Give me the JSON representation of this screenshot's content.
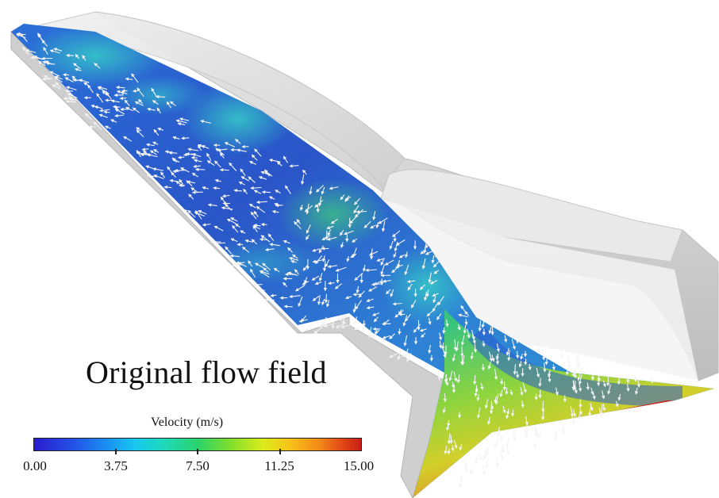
{
  "figure": {
    "title": "Original flow field"
  },
  "colorbar": {
    "label": "Velocity (m/s)",
    "ticks": [
      "0.00",
      "3.75",
      "7.50",
      "11.25",
      "15.00"
    ],
    "range": [
      0,
      15
    ],
    "colormap": [
      "#2a1ccf",
      "#1a8ef2",
      "#18c8ee",
      "#29d36b",
      "#dceb1c",
      "#f38b17",
      "#c81e14"
    ]
  },
  "scene": {
    "subject": "channel-geometry-with-velocity-vectors",
    "wall_color": "#d6d6d6",
    "arrow_color": "#f2f2f2"
  }
}
